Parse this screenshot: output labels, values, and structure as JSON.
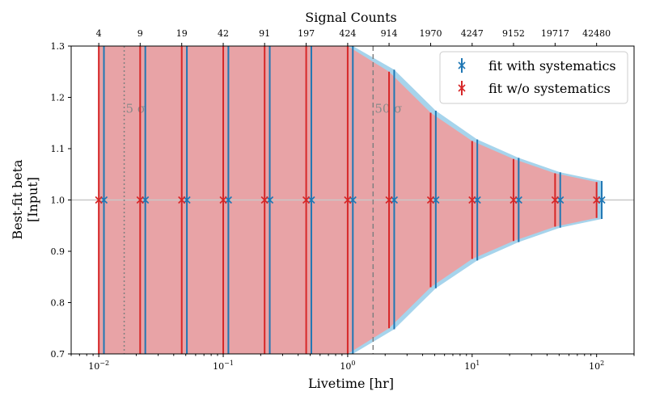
{
  "chart_data": {
    "type": "scatter",
    "title": "Signal Counts",
    "xlabel": "Livetime [hr]",
    "ylabel_line1": "Best-fit beta",
    "ylabel_line2": "[Input]",
    "xscale": "log",
    "xlim": [
      0.006,
      200
    ],
    "ylim": [
      0.7,
      1.3
    ],
    "yticks": [
      0.7,
      0.8,
      0.9,
      1.0,
      1.1,
      1.2,
      1.3
    ],
    "ytick_labels": [
      "0.7",
      "0.8",
      "0.9",
      "1.0",
      "1.1",
      "1.2",
      "1.3"
    ],
    "xtick_exponents": [
      "-2",
      "-1",
      "0",
      "1",
      "2"
    ],
    "xtick_base": "10",
    "legend_position": "top-right",
    "top_axis_labels": [
      "4",
      "9",
      "19",
      "42",
      "91",
      "197",
      "424",
      "914",
      "1970",
      "4247",
      "9152",
      "19717",
      "42480"
    ],
    "livetimes": [
      0.01,
      0.0215,
      0.0464,
      0.1,
      0.215,
      0.464,
      1.0,
      2.15,
      4.64,
      10.0,
      21.5,
      46.4,
      100.0
    ],
    "series": [
      {
        "name": "fit with systematics",
        "color": "#1f77b4",
        "x_offset_factor": 1.1,
        "values": [
          1,
          1,
          1,
          1,
          1,
          1,
          1,
          1,
          1,
          1,
          1,
          1,
          1
        ],
        "lower": [
          0.7,
          0.7,
          0.7,
          0.7,
          0.7,
          0.7,
          0.7,
          0.748,
          0.828,
          0.882,
          0.918,
          0.946,
          0.963
        ],
        "upper": [
          1.3,
          1.3,
          1.3,
          1.3,
          1.3,
          1.3,
          1.3,
          1.254,
          1.174,
          1.118,
          1.082,
          1.054,
          1.037
        ],
        "band_color": "#a6d4ec"
      },
      {
        "name": "fit w/o systematics",
        "color": "#d62728",
        "x_offset_factor": 1.0,
        "values": [
          1,
          1,
          1,
          1,
          1,
          1,
          1,
          1,
          1,
          1,
          1,
          1,
          1
        ],
        "lower": [
          0.7,
          0.7,
          0.7,
          0.7,
          0.7,
          0.7,
          0.7,
          0.75,
          0.83,
          0.885,
          0.92,
          0.948,
          0.965
        ],
        "upper": [
          1.3,
          1.3,
          1.3,
          1.3,
          1.3,
          1.3,
          1.3,
          1.25,
          1.17,
          1.115,
          1.08,
          1.052,
          1.035
        ],
        "band_color": "#e8a3a6"
      }
    ],
    "reference_lines": [
      {
        "x": 0.016,
        "label": "5 σ",
        "style": "dotted"
      },
      {
        "x": 1.6,
        "label": "50 σ",
        "style": "dashed"
      }
    ],
    "hline_y": 1.0
  }
}
